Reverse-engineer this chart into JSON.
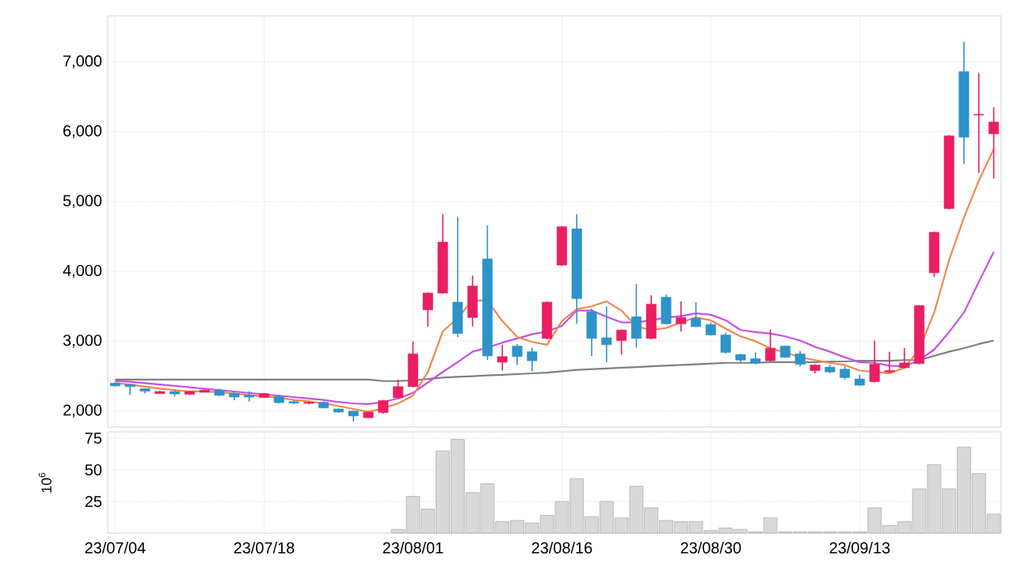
{
  "chart_data": [
    {
      "type": "candlestick",
      "ohlc": [
        [
          2400,
          2410,
          2350,
          2360
        ],
        [
          2380,
          2385,
          2230,
          2350
        ],
        [
          2320,
          2325,
          2250,
          2285
        ],
        [
          2250,
          2290,
          2245,
          2280
        ],
        [
          2280,
          2300,
          2210,
          2245
        ],
        [
          2240,
          2290,
          2230,
          2280
        ],
        [
          2270,
          2310,
          2265,
          2300
        ],
        [
          2300,
          2320,
          2215,
          2225
        ],
        [
          2255,
          2265,
          2155,
          2200
        ],
        [
          2230,
          2285,
          2135,
          2200
        ],
        [
          2195,
          2260,
          2190,
          2250
        ],
        [
          2210,
          2230,
          2110,
          2120
        ],
        [
          2135,
          2150,
          2100,
          2115
        ],
        [
          2110,
          2140,
          2100,
          2125
        ],
        [
          2125,
          2140,
          2040,
          2045
        ],
        [
          2030,
          2040,
          1975,
          1985
        ],
        [
          2000,
          2010,
          1850,
          1930
        ],
        [
          1905,
          1995,
          1900,
          1985
        ],
        [
          1980,
          2160,
          1960,
          2150
        ],
        [
          2190,
          2450,
          2180,
          2350
        ],
        [
          2350,
          3000,
          2340,
          2820
        ],
        [
          3450,
          3700,
          3210,
          3690
        ],
        [
          3690,
          4820,
          3680,
          4420
        ],
        [
          3560,
          4780,
          3060,
          3110
        ],
        [
          3340,
          3940,
          3210,
          3790
        ],
        [
          4180,
          4660,
          2730,
          2790
        ],
        [
          2700,
          2950,
          2580,
          2780
        ],
        [
          2930,
          2960,
          2660,
          2780
        ],
        [
          2850,
          2910,
          2570,
          2720
        ],
        [
          3040,
          3570,
          3030,
          3560
        ],
        [
          4090,
          4650,
          4080,
          4640
        ],
        [
          4610,
          4820,
          3250,
          3610
        ],
        [
          3420,
          3470,
          2790,
          3040
        ],
        [
          3050,
          3500,
          2700,
          2950
        ],
        [
          3010,
          3170,
          2810,
          3160
        ],
        [
          3350,
          3820,
          2910,
          3040
        ],
        [
          3040,
          3660,
          3030,
          3530
        ],
        [
          3630,
          3670,
          3240,
          3250
        ],
        [
          3250,
          3570,
          3140,
          3340
        ],
        [
          3330,
          3560,
          3200,
          3210
        ],
        [
          3240,
          3270,
          3080,
          3090
        ],
        [
          3090,
          3120,
          2820,
          2840
        ],
        [
          2810,
          2820,
          2700,
          2730
        ],
        [
          2750,
          2840,
          2670,
          2690
        ],
        [
          2720,
          3170,
          2710,
          2900
        ],
        [
          2930,
          2940,
          2760,
          2770
        ],
        [
          2820,
          2860,
          2640,
          2670
        ],
        [
          2580,
          2670,
          2540,
          2660
        ],
        [
          2630,
          2660,
          2540,
          2560
        ],
        [
          2600,
          2640,
          2450,
          2480
        ],
        [
          2460,
          2520,
          2360,
          2370
        ],
        [
          2420,
          3010,
          2410,
          2670
        ],
        [
          2560,
          2850,
          2540,
          2580
        ],
        [
          2620,
          2900,
          2610,
          2690
        ],
        [
          2680,
          3520,
          2670,
          3510
        ],
        [
          3980,
          4570,
          3920,
          4560
        ],
        [
          4900,
          5950,
          4890,
          5940
        ],
        [
          6860,
          7290,
          5540,
          5920
        ],
        [
          6240,
          6840,
          5410,
          6250
        ],
        [
          5970,
          6350,
          5330,
          6140
        ]
      ],
      "colors": [
        "#2e93c8",
        "#2e93c8",
        "#2e93c8",
        "#e91e63",
        "#2e93c8",
        "#e91e63",
        "#e91e63",
        "#2e93c8",
        "#2e93c8",
        "#2e93c8",
        "#e91e63",
        "#2e93c8",
        "#2e93c8",
        "#e91e63",
        "#2e93c8",
        "#2e93c8",
        "#2e93c8",
        "#e91e63",
        "#e91e63",
        "#e91e63",
        "#e91e63",
        "#e91e63",
        "#e91e63",
        "#2e93c8",
        "#e91e63",
        "#2e93c8",
        "#e91e63",
        "#2e93c8",
        "#2e93c8",
        "#e91e63",
        "#e91e63",
        "#2e93c8",
        "#2e93c8",
        "#2e93c8",
        "#e91e63",
        "#2e93c8",
        "#e91e63",
        "#2e93c8",
        "#e91e63",
        "#2e93c8",
        "#2e93c8",
        "#2e93c8",
        "#2e93c8",
        "#2e93c8",
        "#e91e63",
        "#2e93c8",
        "#2e93c8",
        "#e91e63",
        "#2e93c8",
        "#2e93c8",
        "#2e93c8",
        "#e91e63",
        "#e91e63",
        "#e91e63",
        "#e91e63",
        "#e91e63",
        "#e91e63",
        "#2e93c8",
        "#e91e63",
        "#e91e63"
      ],
      "series": [
        {
          "type": "line",
          "color": "#808080",
          "values": [
            2450,
            2450,
            2450,
            2450,
            2450,
            2450,
            2450,
            2450,
            2450,
            2450,
            2450,
            2450,
            2450,
            2450,
            2450,
            2450,
            2450,
            2450,
            2430,
            2430,
            2440,
            2460,
            2480,
            2490,
            2500,
            2510,
            2520,
            2530,
            2540,
            2550,
            2570,
            2590,
            2600,
            2610,
            2620,
            2630,
            2640,
            2650,
            2660,
            2670,
            2680,
            2690,
            2690,
            2690,
            2700,
            2700,
            2700,
            2700,
            2710,
            2710,
            2720,
            2720,
            2720,
            2730,
            2730,
            2790,
            2850,
            2900,
            2960,
            3010
          ]
        },
        {
          "type": "line",
          "color": "#c94fe8",
          "values": [
            2430,
            2420,
            2400,
            2380,
            2360,
            2340,
            2320,
            2300,
            2280,
            2260,
            2240,
            2220,
            2200,
            2180,
            2160,
            2130,
            2110,
            2100,
            2130,
            2180,
            2260,
            2410,
            2560,
            2700,
            2850,
            2910,
            2980,
            3040,
            3100,
            3140,
            3220,
            3440,
            3440,
            3350,
            3270,
            3270,
            3300,
            3340,
            3360,
            3400,
            3380,
            3300,
            3160,
            3130,
            3110,
            3070,
            3010,
            2920,
            2850,
            2770,
            2700,
            2690,
            2650,
            2640,
            2730,
            2880,
            3130,
            3410,
            3850,
            4280
          ]
        },
        {
          "type": "line",
          "color": "#f0884a",
          "values": [
            2400,
            2380,
            2350,
            2320,
            2300,
            2280,
            2280,
            2270,
            2250,
            2230,
            2210,
            2190,
            2160,
            2140,
            2110,
            2070,
            2030,
            1990,
            2040,
            2110,
            2220,
            2560,
            3140,
            3330,
            3590,
            3580,
            3290,
            3060,
            2990,
            2950,
            3290,
            3460,
            3500,
            3570,
            3440,
            3210,
            3160,
            3190,
            3270,
            3340,
            3300,
            3180,
            3070,
            3000,
            2900,
            2840,
            2770,
            2730,
            2690,
            2660,
            2580,
            2560,
            2540,
            2620,
            2880,
            3410,
            4160,
            4770,
            5300,
            5750
          ]
        }
      ],
      "ylim": [
        1770,
        7660
      ],
      "yticks": [
        {
          "value": 2000,
          "label": "2,000"
        },
        {
          "value": 3000,
          "label": "3,000"
        },
        {
          "value": 4000,
          "label": "4,000"
        },
        {
          "value": 5000,
          "label": "5,000"
        },
        {
          "value": 6000,
          "label": "6,000"
        },
        {
          "value": 7000,
          "label": "7,000"
        }
      ],
      "grid": true,
      "tick_labels": "y"
    },
    {
      "type": "bar",
      "categories": [
        "23/07/04",
        null,
        null,
        null,
        null,
        null,
        null,
        null,
        null,
        null,
        "23/07/18",
        null,
        null,
        null,
        null,
        null,
        null,
        null,
        null,
        null,
        "23/08/01",
        null,
        null,
        null,
        null,
        null,
        null,
        null,
        null,
        null,
        "23/08/16",
        null,
        null,
        null,
        null,
        null,
        null,
        null,
        null,
        null,
        "23/08/30",
        null,
        null,
        null,
        null,
        null,
        null,
        null,
        null,
        null,
        "23/09/13",
        null,
        null,
        null,
        null,
        null,
        null,
        null,
        null,
        null
      ],
      "values": [
        null,
        null,
        null,
        null,
        null,
        null,
        null,
        null,
        null,
        null,
        null,
        null,
        null,
        null,
        null,
        null,
        null,
        null,
        null,
        3,
        29,
        19,
        65,
        74,
        32,
        39,
        9,
        10,
        8,
        14,
        25,
        43,
        13,
        25,
        12,
        37,
        20,
        10,
        9,
        9,
        2,
        4,
        3,
        1,
        12,
        1,
        1,
        1,
        1,
        1,
        1,
        20,
        6,
        9,
        35,
        54,
        35,
        68,
        47,
        15
      ],
      "color": "#d9d9d9",
      "ylabel": "10$^{6}$",
      "ylim": [
        0,
        80
      ],
      "yticks": [
        25,
        50,
        75
      ],
      "grid": true
    }
  ]
}
